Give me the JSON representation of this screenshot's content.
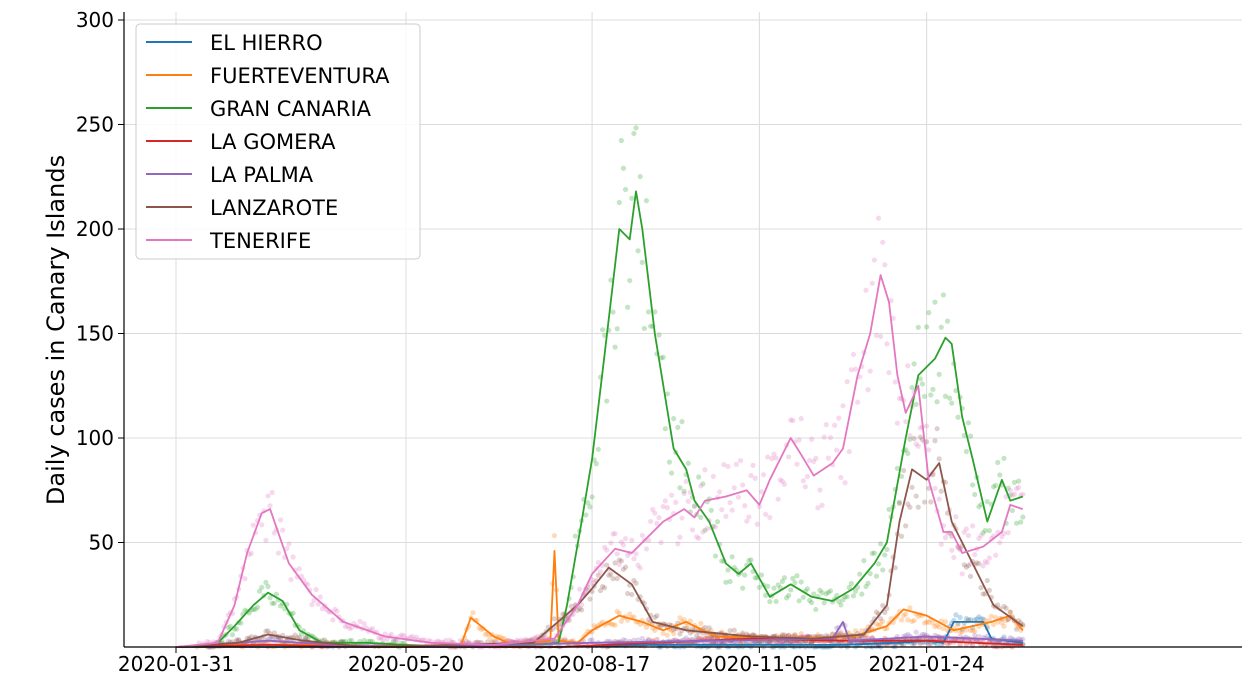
{
  "chart_data": {
    "type": "line",
    "title": "",
    "xlabel": "",
    "ylabel": "Daily cases in Canary Islands",
    "x_range": [
      "2020-01-31",
      "2021-03-11"
    ],
    "ylim": [
      0,
      300
    ],
    "yticks": [
      50,
      100,
      150,
      200,
      250,
      300
    ],
    "xticks": [
      "2020-01-31",
      "2020-05-20",
      "2020-08-17",
      "2020-11-05",
      "2021-01-24"
    ],
    "grid": true,
    "legend_position": "top-left",
    "scatter_points": "daily values shown as faint dots behind each smoothed line",
    "series": [
      {
        "name": "EL HIERRO",
        "color": "#1f77b4",
        "points": [
          [
            "2020-01-31",
            0
          ],
          [
            "2020-03-01",
            0
          ],
          [
            "2020-04-01",
            0
          ],
          [
            "2020-06-01",
            0
          ],
          [
            "2020-08-01",
            0
          ],
          [
            "2020-09-15",
            1
          ],
          [
            "2020-11-01",
            1
          ],
          [
            "2020-12-15",
            1
          ],
          [
            "2021-01-10",
            2
          ],
          [
            "2021-01-24",
            3
          ],
          [
            "2021-02-01",
            2
          ],
          [
            "2021-02-06",
            12
          ],
          [
            "2021-02-20",
            12
          ],
          [
            "2021-02-24",
            4
          ],
          [
            "2021-03-11",
            2
          ]
        ]
      },
      {
        "name": "FUERTEVENTURA",
        "color": "#ff7f0e",
        "points": [
          [
            "2020-01-31",
            0
          ],
          [
            "2020-03-01",
            1
          ],
          [
            "2020-04-15",
            1
          ],
          [
            "2020-06-15",
            0
          ],
          [
            "2020-06-20",
            14
          ],
          [
            "2020-07-01",
            5
          ],
          [
            "2020-07-10",
            1
          ],
          [
            "2020-07-28",
            3
          ],
          [
            "2020-07-30",
            46
          ],
          [
            "2020-08-01",
            3
          ],
          [
            "2020-08-10",
            2
          ],
          [
            "2020-08-17",
            8
          ],
          [
            "2020-08-30",
            15
          ],
          [
            "2020-09-10",
            12
          ],
          [
            "2020-09-20",
            8
          ],
          [
            "2020-10-01",
            12
          ],
          [
            "2020-10-15",
            5
          ],
          [
            "2020-11-15",
            4
          ],
          [
            "2020-12-20",
            5
          ],
          [
            "2021-01-05",
            10
          ],
          [
            "2021-01-13",
            18
          ],
          [
            "2021-01-24",
            15
          ],
          [
            "2021-02-06",
            8
          ],
          [
            "2021-02-24",
            12
          ],
          [
            "2021-03-05",
            15
          ],
          [
            "2021-03-11",
            8
          ]
        ]
      },
      {
        "name": "GRAN CANARIA",
        "color": "#2ca02c",
        "points": [
          [
            "2020-01-31",
            0
          ],
          [
            "2020-02-15",
            0
          ],
          [
            "2020-02-20",
            2
          ],
          [
            "2020-02-28",
            10
          ],
          [
            "2020-03-08",
            20
          ],
          [
            "2020-03-15",
            26
          ],
          [
            "2020-03-22",
            22
          ],
          [
            "2020-03-30",
            8
          ],
          [
            "2020-04-10",
            2
          ],
          [
            "2020-05-01",
            2
          ],
          [
            "2020-05-20",
            1
          ],
          [
            "2020-06-15",
            0
          ],
          [
            "2020-07-20",
            1
          ],
          [
            "2020-08-01",
            2
          ],
          [
            "2020-08-05",
            20
          ],
          [
            "2020-08-12",
            60
          ],
          [
            "2020-08-17",
            90
          ],
          [
            "2020-08-23",
            140
          ],
          [
            "2020-08-30",
            200
          ],
          [
            "2020-09-04",
            195
          ],
          [
            "2020-09-07",
            218
          ],
          [
            "2020-09-10",
            200
          ],
          [
            "2020-09-16",
            150
          ],
          [
            "2020-09-25",
            95
          ],
          [
            "2020-10-01",
            85
          ],
          [
            "2020-10-05",
            70
          ],
          [
            "2020-10-12",
            60
          ],
          [
            "2020-10-20",
            40
          ],
          [
            "2020-10-26",
            35
          ],
          [
            "2020-11-01",
            40
          ],
          [
            "2020-11-10",
            24
          ],
          [
            "2020-11-20",
            30
          ],
          [
            "2020-11-30",
            24
          ],
          [
            "2020-12-10",
            22
          ],
          [
            "2020-12-20",
            28
          ],
          [
            "2020-12-30",
            40
          ],
          [
            "2021-01-05",
            50
          ],
          [
            "2021-01-14",
            100
          ],
          [
            "2021-01-20",
            130
          ],
          [
            "2021-01-28",
            138
          ],
          [
            "2021-02-02",
            148
          ],
          [
            "2021-02-05",
            145
          ],
          [
            "2021-02-10",
            110
          ],
          [
            "2021-02-15",
            90
          ],
          [
            "2021-02-22",
            60
          ],
          [
            "2021-03-01",
            80
          ],
          [
            "2021-03-05",
            70
          ],
          [
            "2021-03-11",
            72
          ]
        ]
      },
      {
        "name": "LA GOMERA",
        "color": "#d62728",
        "points": [
          [
            "2020-01-31",
            0
          ],
          [
            "2020-03-15",
            1
          ],
          [
            "2020-05-01",
            0
          ],
          [
            "2020-08-01",
            0
          ],
          [
            "2020-09-15",
            2
          ],
          [
            "2020-11-01",
            4
          ],
          [
            "2020-12-15",
            3
          ],
          [
            "2021-01-24",
            3
          ],
          [
            "2021-03-11",
            1
          ]
        ]
      },
      {
        "name": "LA PALMA",
        "color": "#9467bd",
        "points": [
          [
            "2020-01-31",
            0
          ],
          [
            "2020-03-15",
            3
          ],
          [
            "2020-04-15",
            1
          ],
          [
            "2020-06-01",
            0
          ],
          [
            "2020-08-17",
            2
          ],
          [
            "2020-10-15",
            3
          ],
          [
            "2020-12-10",
            4
          ],
          [
            "2020-12-15",
            12
          ],
          [
            "2020-12-18",
            3
          ],
          [
            "2021-01-24",
            5
          ],
          [
            "2021-03-11",
            3
          ]
        ]
      },
      {
        "name": "LANZAROTE",
        "color": "#8c564b",
        "points": [
          [
            "2020-01-31",
            0
          ],
          [
            "2020-03-01",
            2
          ],
          [
            "2020-03-15",
            6
          ],
          [
            "2020-04-01",
            3
          ],
          [
            "2020-05-01",
            0
          ],
          [
            "2020-07-20",
            2
          ],
          [
            "2020-08-10",
            20
          ],
          [
            "2020-08-17",
            28
          ],
          [
            "2020-08-25",
            38
          ],
          [
            "2020-09-05",
            30
          ],
          [
            "2020-09-15",
            12
          ],
          [
            "2020-10-01",
            8
          ],
          [
            "2020-11-01",
            5
          ],
          [
            "2020-12-01",
            4
          ],
          [
            "2020-12-25",
            6
          ],
          [
            "2021-01-05",
            20
          ],
          [
            "2021-01-11",
            60
          ],
          [
            "2021-01-17",
            85
          ],
          [
            "2021-01-24",
            80
          ],
          [
            "2021-01-30",
            88
          ],
          [
            "2021-02-05",
            60
          ],
          [
            "2021-02-15",
            40
          ],
          [
            "2021-02-25",
            20
          ],
          [
            "2021-03-11",
            10
          ]
        ]
      },
      {
        "name": "TENERIFE",
        "color": "#e377c2",
        "points": [
          [
            "2020-01-31",
            0
          ],
          [
            "2020-02-20",
            2
          ],
          [
            "2020-02-28",
            20
          ],
          [
            "2020-03-05",
            45
          ],
          [
            "2020-03-12",
            64
          ],
          [
            "2020-03-16",
            66
          ],
          [
            "2020-03-25",
            40
          ],
          [
            "2020-04-05",
            25
          ],
          [
            "2020-04-20",
            12
          ],
          [
            "2020-05-10",
            5
          ],
          [
            "2020-06-01",
            2
          ],
          [
            "2020-07-01",
            1
          ],
          [
            "2020-07-30",
            4
          ],
          [
            "2020-08-10",
            20
          ],
          [
            "2020-08-17",
            35
          ],
          [
            "2020-08-28",
            47
          ],
          [
            "2020-09-05",
            45
          ],
          [
            "2020-09-20",
            60
          ],
          [
            "2020-09-30",
            66
          ],
          [
            "2020-10-05",
            62
          ],
          [
            "2020-10-10",
            70
          ],
          [
            "2020-10-20",
            72
          ],
          [
            "2020-10-30",
            75
          ],
          [
            "2020-11-05",
            68
          ],
          [
            "2020-11-10",
            80
          ],
          [
            "2020-11-20",
            100
          ],
          [
            "2020-11-25",
            92
          ],
          [
            "2020-12-01",
            82
          ],
          [
            "2020-12-10",
            88
          ],
          [
            "2020-12-15",
            95
          ],
          [
            "2020-12-22",
            130
          ],
          [
            "2020-12-28",
            150
          ],
          [
            "2021-01-02",
            178
          ],
          [
            "2021-01-06",
            165
          ],
          [
            "2021-01-10",
            130
          ],
          [
            "2021-01-14",
            112
          ],
          [
            "2021-01-20",
            125
          ],
          [
            "2021-01-25",
            80
          ],
          [
            "2021-02-01",
            55
          ],
          [
            "2021-02-05",
            55
          ],
          [
            "2021-02-10",
            45
          ],
          [
            "2021-02-20",
            48
          ],
          [
            "2021-03-01",
            55
          ],
          [
            "2021-03-05",
            68
          ],
          [
            "2021-03-11",
            66
          ]
        ]
      }
    ]
  }
}
